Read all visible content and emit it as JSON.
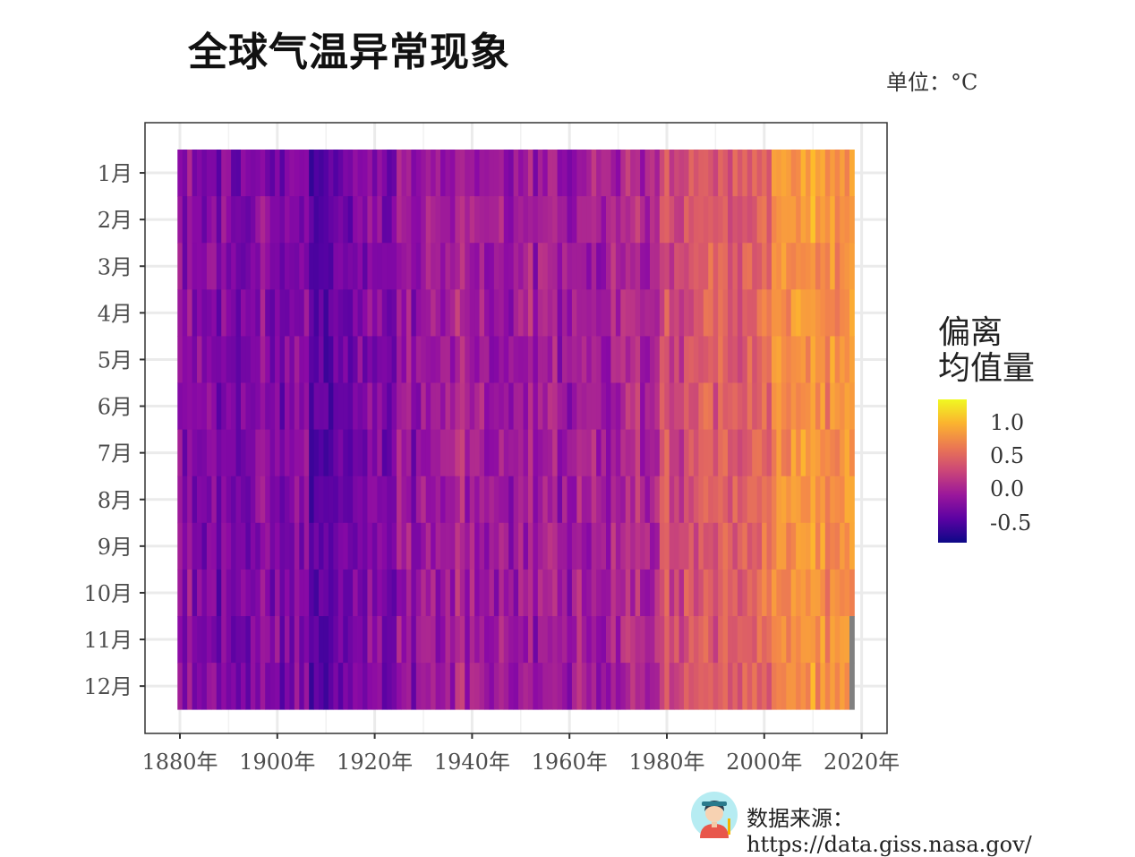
{
  "title": "全球气温异常现象",
  "subtitle": "单位：°C",
  "source_text": "数据来源：https://data.giss.nasa.gov/",
  "colors": {
    "low": "#0d0887",
    "mid": "#9a179b",
    "high": "#f0f921",
    "missing": "#808080"
  },
  "icons": {
    "avatar": "avatar-icon"
  },
  "chart_data": {
    "type": "heatmap",
    "title": "全球气温异常现象",
    "subtitle": "单位：°C",
    "x": {
      "start": 1880,
      "end": 2018,
      "ticks": [
        1880,
        1900,
        1920,
        1940,
        1960,
        1980,
        2000,
        2020
      ],
      "tick_suffix": "年"
    },
    "y_categories": [
      "1月",
      "2月",
      "3月",
      "4月",
      "5月",
      "6月",
      "7月",
      "8月",
      "9月",
      "10月",
      "11月",
      "12月"
    ],
    "legend": {
      "title": [
        "偏离",
        "均值量"
      ],
      "ticks": [
        "1.0",
        "0.5",
        "0.0",
        "-0.5"
      ],
      "tick_values": [
        1.0,
        0.5,
        0.0,
        -0.5
      ],
      "range": [
        -0.8,
        1.35
      ],
      "position": "right"
    },
    "trend_by_decade": [
      {
        "year": 1880,
        "anomaly": -0.18
      },
      {
        "year": 1890,
        "anomaly": -0.28
      },
      {
        "year": 1900,
        "anomaly": -0.22
      },
      {
        "year": 1910,
        "anomaly": -0.4
      },
      {
        "year": 1920,
        "anomaly": -0.28
      },
      {
        "year": 1930,
        "anomaly": -0.14
      },
      {
        "year": 1940,
        "anomaly": 0.05
      },
      {
        "year": 1950,
        "anomaly": -0.06
      },
      {
        "year": 1960,
        "anomaly": -0.02
      },
      {
        "year": 1970,
        "anomaly": 0.02
      },
      {
        "year": 1980,
        "anomaly": 0.25
      },
      {
        "year": 1990,
        "anomaly": 0.4
      },
      {
        "year": 2000,
        "anomaly": 0.58
      },
      {
        "year": 2010,
        "anomaly": 0.78
      },
      {
        "year": 2018,
        "anomaly": 0.85
      }
    ],
    "missing": [
      {
        "year": 2018,
        "months": [
          "11月",
          "12月"
        ]
      }
    ],
    "grid": true
  }
}
